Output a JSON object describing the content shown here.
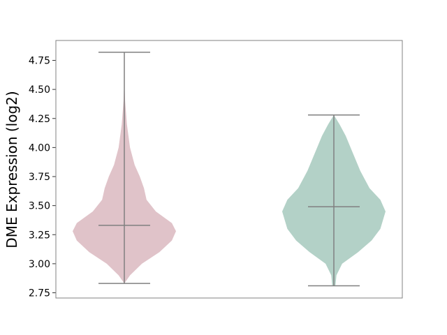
{
  "chart_data": {
    "type": "violin",
    "title": "",
    "xlabel": "",
    "ylabel": "DME Expression (log2)",
    "ylim": [
      2.7,
      4.92
    ],
    "yticks": [
      "2.75",
      "3.00",
      "3.25",
      "3.50",
      "3.75",
      "4.00",
      "4.25",
      "4.50",
      "4.75"
    ],
    "grid": false,
    "series": [
      {
        "color": "#e0c3c9",
        "min": 2.83,
        "max": 4.82,
        "median": 3.33,
        "density_profile": [
          [
            2.83,
            0
          ],
          [
            2.9,
            0.11
          ],
          [
            3.0,
            0.34
          ],
          [
            3.1,
            0.68
          ],
          [
            3.2,
            0.92
          ],
          [
            3.28,
            1.0
          ],
          [
            3.35,
            0.92
          ],
          [
            3.45,
            0.61
          ],
          [
            3.55,
            0.43
          ],
          [
            3.65,
            0.38
          ],
          [
            3.75,
            0.3
          ],
          [
            3.85,
            0.2
          ],
          [
            4.0,
            0.11
          ],
          [
            4.2,
            0.05
          ],
          [
            4.4,
            0.015
          ],
          [
            4.5,
            0.007
          ],
          [
            4.82,
            0.007
          ]
        ]
      },
      {
        "color": "#b3d1c7",
        "min": 2.81,
        "max": 4.28,
        "median": 3.49,
        "density_profile": [
          [
            2.81,
            0.03
          ],
          [
            2.9,
            0.05
          ],
          [
            3.0,
            0.16
          ],
          [
            3.1,
            0.47
          ],
          [
            3.2,
            0.73
          ],
          [
            3.3,
            0.9
          ],
          [
            3.45,
            1.0
          ],
          [
            3.55,
            0.9
          ],
          [
            3.65,
            0.69
          ],
          [
            3.8,
            0.51
          ],
          [
            3.95,
            0.37
          ],
          [
            4.1,
            0.23
          ],
          [
            4.2,
            0.11
          ],
          [
            4.28,
            0
          ]
        ]
      }
    ]
  }
}
